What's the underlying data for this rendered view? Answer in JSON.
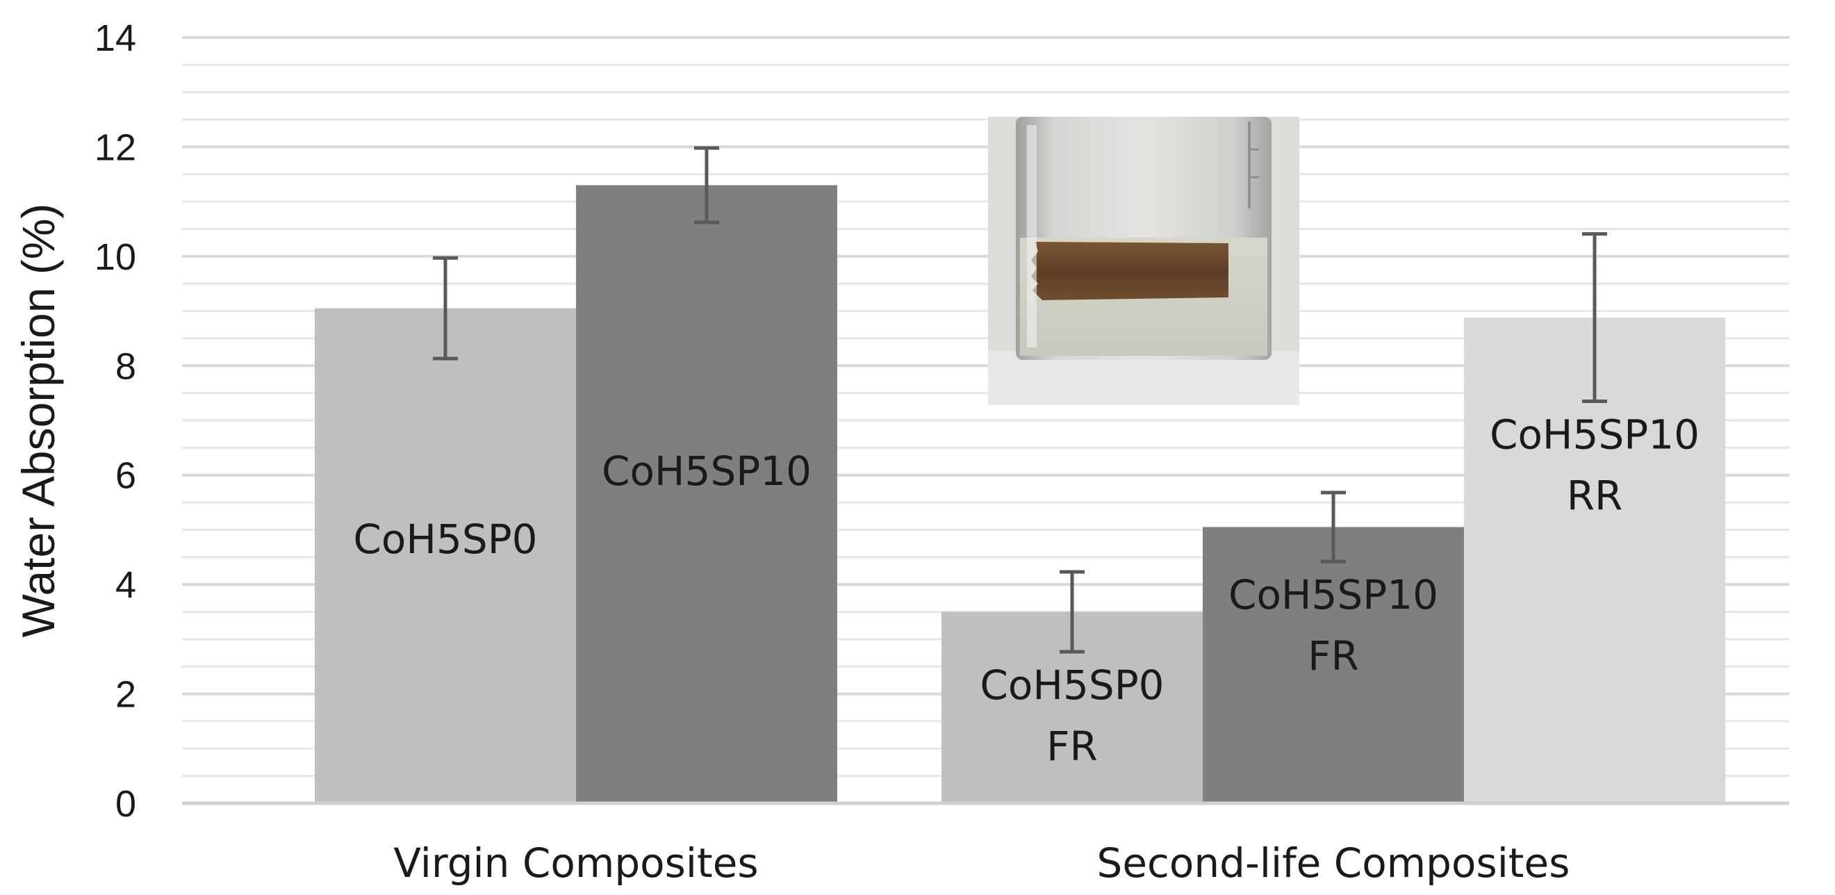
{
  "chart_data": {
    "type": "bar",
    "title": "",
    "xlabel": "",
    "ylabel": "Water Absorption (%)",
    "ylim": [
      0,
      14
    ],
    "yticks": [
      0,
      2,
      4,
      6,
      8,
      10,
      12,
      14
    ],
    "grid": true,
    "legend": "none",
    "groups": [
      {
        "label": "Virgin Composites",
        "bars": [
          {
            "label_lines": [
              "CoH5SP0"
            ],
            "value": 9.05,
            "error": 0.92,
            "color": "#bfbfbf"
          },
          {
            "label_lines": [
              "CoH5SP10"
            ],
            "value": 11.3,
            "error": 0.68,
            "color": "#7f7f7f"
          }
        ]
      },
      {
        "label": "Second-life Composites",
        "bars": [
          {
            "label_lines": [
              "CoH5SP0",
              "FR"
            ],
            "value": 3.5,
            "error": 0.73,
            "color": "#bfbfbf"
          },
          {
            "label_lines": [
              "CoH5SP10",
              "FR"
            ],
            "value": 5.05,
            "error": 0.63,
            "color": "#7f7f7f"
          },
          {
            "label_lines": [
              "CoH5SP10",
              "RR"
            ],
            "value": 8.88,
            "error": 1.53,
            "color": "#d9d9d9"
          }
        ]
      }
    ]
  },
  "inset_photo": {
    "icon": "beaker-with-composite-sample-photo",
    "glass_color": "#c9cbc8",
    "sample_color": "#6b4a30"
  }
}
